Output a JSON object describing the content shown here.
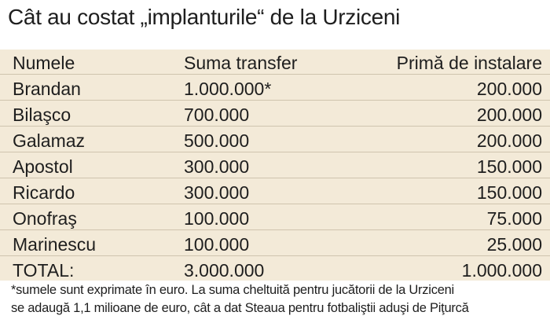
{
  "title": "Cât au costat „implanturile“ de la Urziceni",
  "table": {
    "headers": {
      "name": "Numele",
      "transfer": "Suma transfer",
      "bonus": "Primă de instalare"
    },
    "rows": [
      {
        "name": "Brandan",
        "transfer": "1.000.000*",
        "bonus": "200.000"
      },
      {
        "name": "Bilaşco",
        "transfer": "700.000",
        "bonus": "200.000"
      },
      {
        "name": "Galamaz",
        "transfer": "500.000",
        "bonus": "200.000"
      },
      {
        "name": "Apostol",
        "transfer": "300.000",
        "bonus": "150.000"
      },
      {
        "name": "Ricardo",
        "transfer": "300.000",
        "bonus": "150.000"
      },
      {
        "name": "Onofraş",
        "transfer": "100.000",
        "bonus": "75.000"
      },
      {
        "name": "Marinescu",
        "transfer": "100.000",
        "bonus": "25.000"
      }
    ],
    "total": {
      "name": "TOTAL:",
      "transfer": "3.000.000",
      "bonus": "1.000.000"
    }
  },
  "footnote": {
    "line1": "*sumele sunt exprimate în euro. La suma cheltuită pentru jucătorii de la Urziceni",
    "line2": "se adaugă 1,1 milioane de euro, cât a dat Steaua pentru fotbaliştii aduşi de Piţurcă"
  },
  "colors": {
    "panel": "#f3ead8",
    "text": "#1e1e1e",
    "rule": "#cfc4ae"
  }
}
